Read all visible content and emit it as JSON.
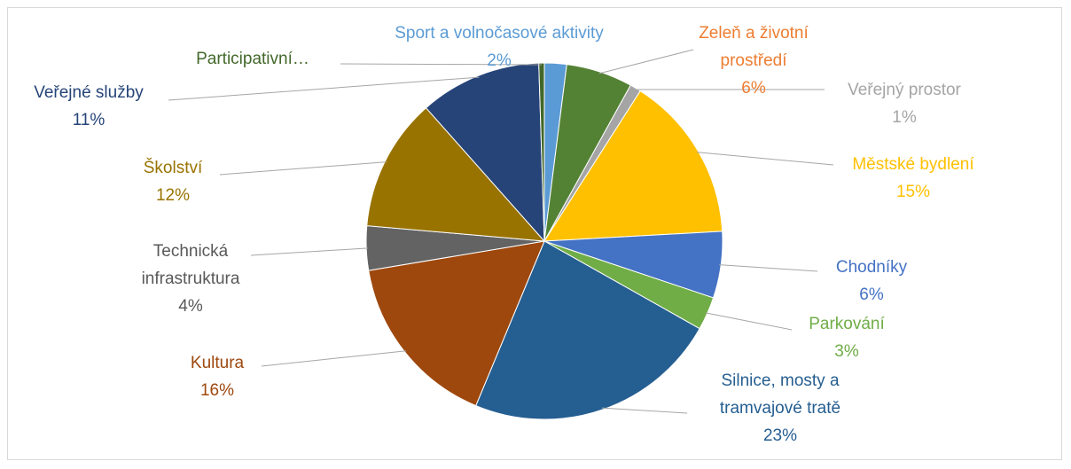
{
  "chart_data": {
    "type": "pie",
    "categories": [
      "Sport a volnočasové aktivity",
      "Zeleň a životní prostředí",
      "Veřejný prostor",
      "Městské bydlení",
      "Chodníky",
      "Parkování",
      "Silnice, mosty a tramvajové tratě",
      "Kultura",
      "Technická infrastruktura",
      "Školství",
      "Veřejné služby",
      "Participativní…"
    ],
    "values": [
      2,
      6,
      1,
      15,
      6,
      3,
      23,
      16,
      4,
      12,
      11,
      0.5
    ],
    "value_labels": [
      "2%",
      "6%",
      "1%",
      "15%",
      "6%",
      "3%",
      "23%",
      "16%",
      "4%",
      "12%",
      "11%",
      null
    ],
    "colors": [
      "#5b9bd5",
      "#548235",
      "#a5a5a5",
      "#ffc000",
      "#4472c4",
      "#70ad47",
      "#255e91",
      "#9e480e",
      "#636363",
      "#997300",
      "#264478",
      "#43682b"
    ],
    "label_colors": [
      "#5b9bd5",
      "#ed7d31",
      "#a5a5a5",
      "#ffc000",
      "#4472c4",
      "#70ad47",
      "#255e91",
      "#9e480e",
      "#595959",
      "#997300",
      "#264478",
      "#43682b"
    ]
  }
}
